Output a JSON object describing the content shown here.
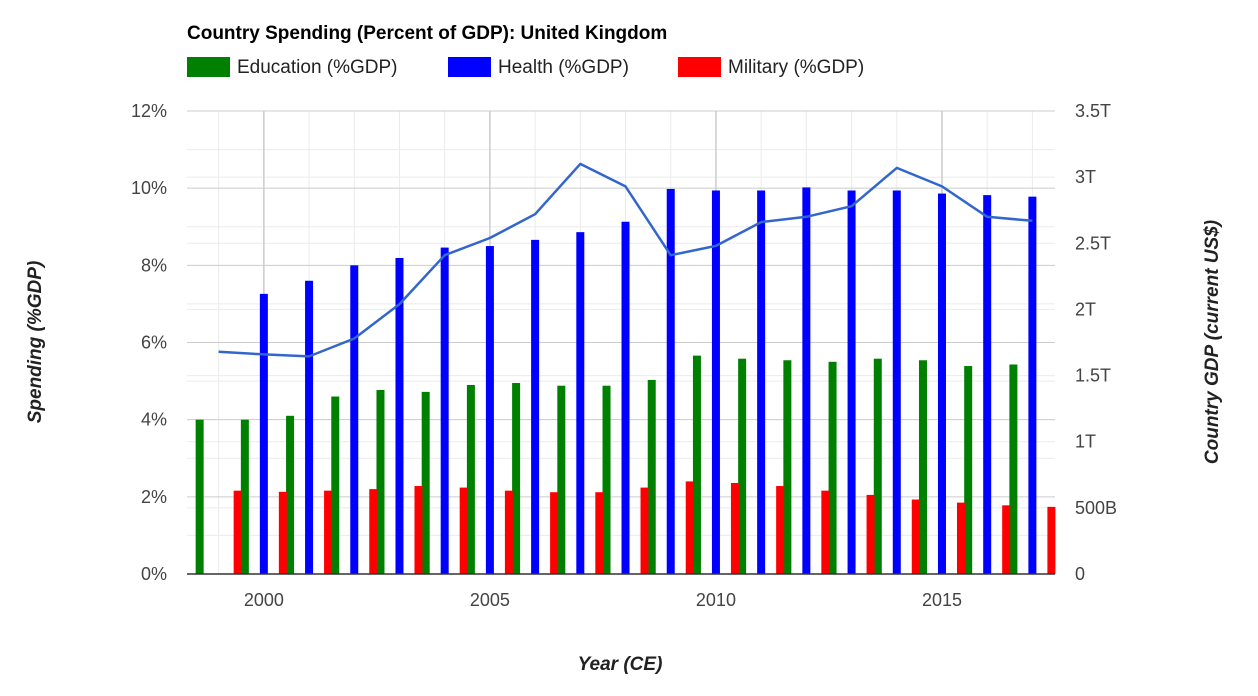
{
  "chart_data": {
    "type": "bar",
    "title": "Country Spending (Percent of GDP): United Kingdom",
    "xlabel": "Year (CE)",
    "ylabel": "Spending (%GDP)",
    "y2label": "Country GDP (current US$)",
    "x": [
      1999,
      2000,
      2001,
      2002,
      2003,
      2004,
      2005,
      2006,
      2007,
      2008,
      2009,
      2010,
      2011,
      2012,
      2013,
      2014,
      2015,
      2016,
      2017
    ],
    "x_ticks": [
      2000,
      2005,
      2010,
      2015
    ],
    "x_tick_labels": [
      "2000",
      "2005",
      "2010",
      "2015"
    ],
    "xlim": [
      1998.3,
      2017.5
    ],
    "ylim": [
      0,
      12
    ],
    "y_ticks": [
      0,
      2,
      4,
      6,
      8,
      10,
      12
    ],
    "y_tick_labels": [
      "0%",
      "2%",
      "4%",
      "6%",
      "8%",
      "10%",
      "12%"
    ],
    "y2lim": [
      0,
      3500000000000
    ],
    "y2_ticks": [
      0,
      500000000000,
      1000000000000,
      1500000000000,
      2000000000000,
      2500000000000,
      3000000000000,
      3500000000000
    ],
    "y2_tick_labels": [
      "0",
      "500B",
      "1T",
      "1.5T",
      "2T",
      "2.5T",
      "3T",
      "3.5T"
    ],
    "grid": true,
    "legend_position": "top-left",
    "series": [
      {
        "name": "Education (%GDP)",
        "type": "bar",
        "color": "#008000",
        "values": [
          4.0,
          4.0,
          4.1,
          4.6,
          4.77,
          4.72,
          4.9,
          4.95,
          4.88,
          4.88,
          5.03,
          5.66,
          5.58,
          5.54,
          5.5,
          5.58,
          5.54,
          5.39,
          5.43
        ]
      },
      {
        "name": "Health (%GDP)",
        "type": "bar",
        "color": "#0000ff",
        "values": [
          null,
          7.26,
          7.6,
          8.0,
          8.19,
          8.46,
          8.5,
          8.66,
          8.86,
          9.13,
          9.98,
          9.94,
          9.94,
          10.02,
          9.94,
          9.94,
          9.86,
          9.82,
          9.78
        ]
      },
      {
        "name": "Military (%GDP)",
        "type": "bar",
        "color": "#ff0000",
        "values": [
          2.16,
          2.13,
          2.16,
          2.2,
          2.28,
          2.24,
          2.16,
          2.12,
          2.12,
          2.24,
          2.4,
          2.36,
          2.28,
          2.16,
          2.05,
          1.93,
          1.85,
          1.78,
          1.74
        ]
      },
      {
        "name": "",
        "type": "line",
        "axis": "right",
        "color": "#3366cc",
        "values": [
          1680000000000,
          1660000000000,
          1645000000000,
          1780000000000,
          2040000000000,
          2410000000000,
          2540000000000,
          2720000000000,
          3100000000000,
          2930000000000,
          2410000000000,
          2480000000000,
          2660000000000,
          2700000000000,
          2780000000000,
          3070000000000,
          2930000000000,
          2700000000000,
          2670000000000
        ]
      }
    ]
  },
  "colors": {
    "gridline": "#cccccc",
    "minor_gridline": "#ebebeb",
    "axis": "#333333"
  }
}
